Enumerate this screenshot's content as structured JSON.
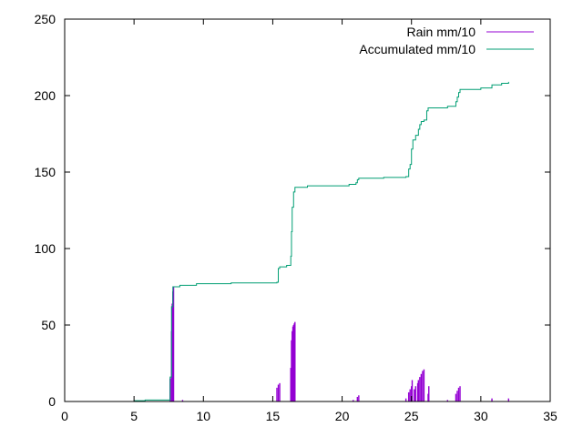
{
  "chart_data": {
    "type": "line",
    "title": "",
    "xlabel": "",
    "ylabel": "",
    "xlim": [
      0,
      35
    ],
    "ylim": [
      0,
      250
    ],
    "xticks": [
      0,
      5,
      10,
      15,
      20,
      25,
      30,
      35
    ],
    "yticks": [
      0,
      50,
      100,
      150,
      200,
      250
    ],
    "grid": false,
    "legend_position": "top-right",
    "series": [
      {
        "name": "Rain mm/10",
        "style": "impulses",
        "color": "#9400d3",
        "points": [
          [
            7.6,
            15
          ],
          [
            7.7,
            46
          ],
          [
            7.75,
            64
          ],
          [
            7.8,
            72
          ],
          [
            7.85,
            75
          ],
          [
            8.5,
            1
          ],
          [
            15.3,
            9
          ],
          [
            15.4,
            11
          ],
          [
            15.5,
            12
          ],
          [
            16.3,
            22
          ],
          [
            16.35,
            40
          ],
          [
            16.4,
            46
          ],
          [
            16.45,
            49
          ],
          [
            16.5,
            50
          ],
          [
            16.55,
            51
          ],
          [
            16.6,
            52
          ],
          [
            20.8,
            1
          ],
          [
            21.1,
            3
          ],
          [
            21.2,
            4
          ],
          [
            24.6,
            2
          ],
          [
            24.8,
            6
          ],
          [
            24.9,
            8
          ],
          [
            25.0,
            10
          ],
          [
            25.05,
            14
          ],
          [
            25.2,
            8
          ],
          [
            25.3,
            10
          ],
          [
            25.45,
            12
          ],
          [
            25.5,
            14
          ],
          [
            25.6,
            16
          ],
          [
            25.7,
            18
          ],
          [
            25.8,
            20
          ],
          [
            25.9,
            21
          ],
          [
            26.2,
            5
          ],
          [
            26.25,
            10
          ],
          [
            27.6,
            1
          ],
          [
            28.2,
            5
          ],
          [
            28.3,
            7
          ],
          [
            28.4,
            9
          ],
          [
            28.5,
            10
          ],
          [
            30.8,
            2
          ],
          [
            32.0,
            2
          ]
        ]
      },
      {
        "name": "Accumulated mm/10",
        "style": "steps",
        "color": "#009e73",
        "points": [
          [
            2.0,
            0
          ],
          [
            5.0,
            0.5
          ],
          [
            5.8,
            1
          ],
          [
            7.5,
            1
          ],
          [
            7.6,
            16
          ],
          [
            7.7,
            62
          ],
          [
            7.8,
            75
          ],
          [
            8.3,
            76
          ],
          [
            9.5,
            77
          ],
          [
            12.0,
            77.5
          ],
          [
            15.3,
            78
          ],
          [
            15.4,
            87
          ],
          [
            15.5,
            88
          ],
          [
            16.0,
            89
          ],
          [
            16.3,
            95
          ],
          [
            16.35,
            111
          ],
          [
            16.4,
            127
          ],
          [
            16.5,
            137
          ],
          [
            16.6,
            140
          ],
          [
            17.5,
            141
          ],
          [
            20.5,
            142
          ],
          [
            21.0,
            143
          ],
          [
            21.1,
            145
          ],
          [
            21.2,
            146
          ],
          [
            23.0,
            146.5
          ],
          [
            24.6,
            147
          ],
          [
            24.8,
            152
          ],
          [
            24.9,
            155
          ],
          [
            25.0,
            165
          ],
          [
            25.1,
            171
          ],
          [
            25.3,
            174
          ],
          [
            25.5,
            178
          ],
          [
            25.6,
            181
          ],
          [
            25.7,
            183
          ],
          [
            25.9,
            184
          ],
          [
            26.1,
            190
          ],
          [
            26.2,
            192
          ],
          [
            27.6,
            193
          ],
          [
            28.2,
            196
          ],
          [
            28.3,
            199
          ],
          [
            28.4,
            202
          ],
          [
            28.5,
            204
          ],
          [
            30.0,
            205
          ],
          [
            30.8,
            207
          ],
          [
            31.5,
            208
          ],
          [
            32.0,
            209
          ]
        ]
      }
    ]
  }
}
